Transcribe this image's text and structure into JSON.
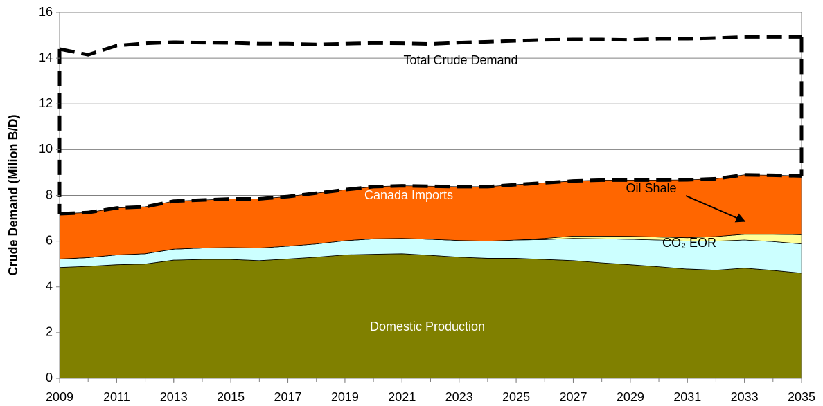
{
  "chart_data": {
    "type": "stacked-area",
    "y_label": "Crude Demand (Milion B/D)",
    "x": [
      2009,
      2010,
      2011,
      2012,
      2013,
      2014,
      2015,
      2016,
      2017,
      2018,
      2019,
      2020,
      2021,
      2022,
      2023,
      2024,
      2025,
      2026,
      2027,
      2028,
      2029,
      2030,
      2031,
      2032,
      2033,
      2034,
      2035
    ],
    "xlim": [
      2009,
      2035
    ],
    "xticks": [
      2009,
      2011,
      2013,
      2015,
      2017,
      2019,
      2021,
      2023,
      2025,
      2027,
      2029,
      2031,
      2033,
      2035
    ],
    "ylim": [
      0,
      16
    ],
    "yticks": [
      0,
      2,
      4,
      6,
      8,
      10,
      12,
      14,
      16
    ],
    "grid": true,
    "series": [
      {
        "name": "Domestic Production",
        "color": "#808000",
        "values": [
          4.85,
          4.9,
          4.97,
          5.0,
          5.17,
          5.2,
          5.2,
          5.15,
          5.22,
          5.3,
          5.4,
          5.43,
          5.45,
          5.38,
          5.3,
          5.25,
          5.25,
          5.2,
          5.15,
          5.05,
          4.97,
          4.88,
          4.78,
          4.73,
          4.82,
          4.72,
          4.6
        ]
      },
      {
        "name": "CO₂ EOR",
        "color": "#ccffff",
        "values": [
          0.37,
          0.38,
          0.43,
          0.45,
          0.48,
          0.5,
          0.52,
          0.55,
          0.56,
          0.58,
          0.62,
          0.67,
          0.67,
          0.7,
          0.73,
          0.75,
          0.8,
          0.87,
          0.97,
          1.05,
          1.11,
          1.17,
          1.22,
          1.27,
          1.23,
          1.26,
          1.28
        ]
      },
      {
        "name": "Oil Shale",
        "color": "#ffff99",
        "values": [
          0,
          0,
          0,
          0,
          0,
          0,
          0,
          0,
          0,
          0,
          0,
          0,
          0,
          0,
          0,
          0,
          0,
          0.05,
          0.1,
          0.12,
          0.13,
          0.13,
          0.15,
          0.2,
          0.25,
          0.32,
          0.4
        ]
      },
      {
        "name": "Canada Imports",
        "color": "#ff6600",
        "values": [
          1.98,
          1.97,
          2.05,
          2.05,
          2.1,
          2.1,
          2.13,
          2.15,
          2.17,
          2.22,
          2.23,
          2.28,
          2.3,
          2.32,
          2.35,
          2.38,
          2.42,
          2.43,
          2.41,
          2.45,
          2.46,
          2.49,
          2.53,
          2.53,
          2.6,
          2.58,
          2.57
        ]
      },
      {
        "name": "Total Crude Demand",
        "color": "#000000",
        "kind": "line",
        "values": [
          14.4,
          14.15,
          14.55,
          14.65,
          14.7,
          14.68,
          14.67,
          14.63,
          14.63,
          14.6,
          14.63,
          14.66,
          14.65,
          14.62,
          14.68,
          14.72,
          14.76,
          14.8,
          14.82,
          14.82,
          14.8,
          14.85,
          14.85,
          14.88,
          14.93,
          14.93,
          14.93
        ]
      }
    ]
  }
}
